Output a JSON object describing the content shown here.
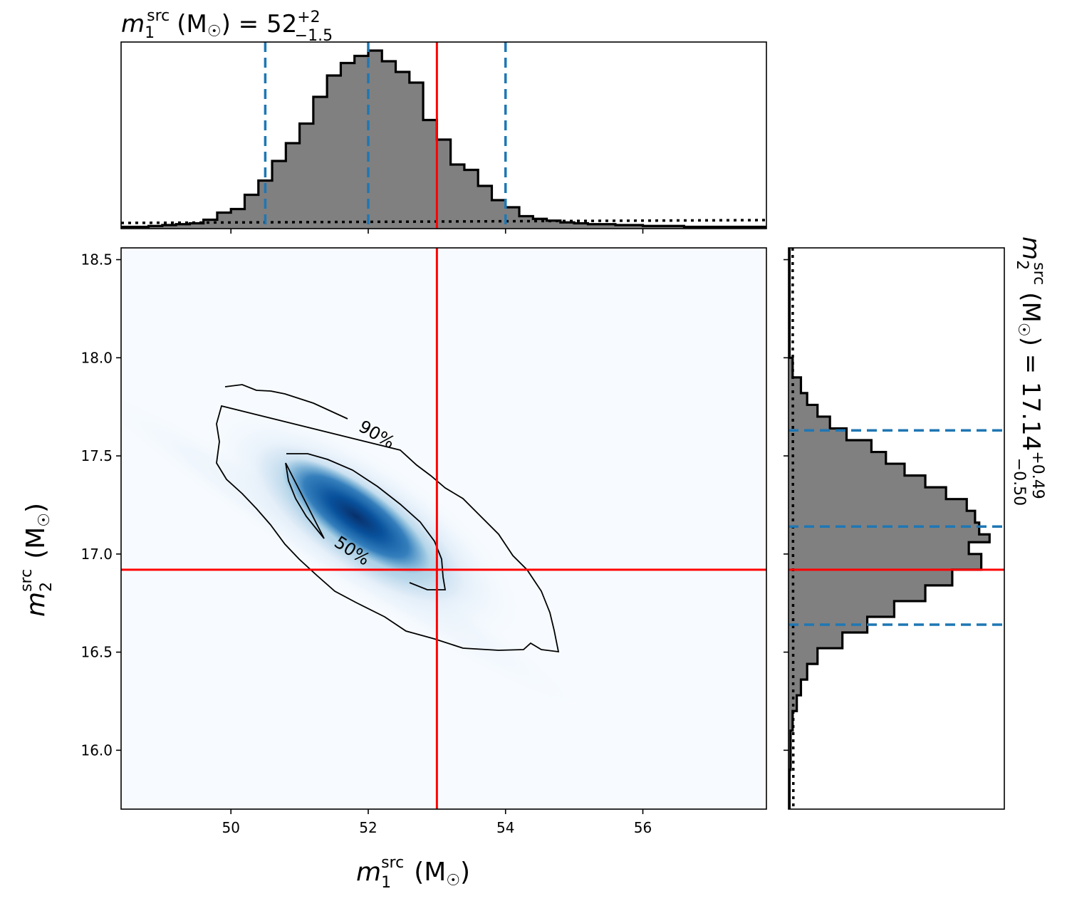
{
  "chart_data": {
    "type": "corner",
    "truth": {
      "m1": 53.0,
      "m2": 16.92
    },
    "m1_quantiles": [
      50.5,
      52.0,
      54.0
    ],
    "m2_quantiles": [
      16.64,
      17.14,
      17.63
    ],
    "top_title": {
      "base": "(M",
      "sun": "☉",
      "tail": ") = 52",
      "sup": "+2",
      "sub": "−1.5",
      "sym": "m",
      "sym_sub": "1",
      "sym_sup": "src"
    },
    "right_title": {
      "base": "(M",
      "sun": "☉",
      "tail": ") = 17.14",
      "sup": "+0.49",
      "sub": "−0.50",
      "sym": "m",
      "sym_sub": "2",
      "sym_sup": "src"
    },
    "xlabel": {
      "sym": "m",
      "sym_sub": "1",
      "sym_sup": "src",
      "unit_open": "(M",
      "sun": "☉",
      "unit_close": ")"
    },
    "ylabel": {
      "sym": "m",
      "sym_sub": "2",
      "sym_sup": "src",
      "unit_open": "(M",
      "sun": "☉",
      "unit_close": ")"
    },
    "xlim": [
      48.4,
      57.8
    ],
    "ylim": [
      15.7,
      18.56
    ],
    "xticks": [
      "50",
      "52",
      "54",
      "56"
    ],
    "xtick_values": [
      50,
      52,
      54,
      56
    ],
    "yticks": [
      "16.0",
      "16.5",
      "17.0",
      "17.5",
      "18.0",
      "18.5"
    ],
    "ytick_values": [
      16.0,
      16.5,
      17.0,
      17.5,
      18.0,
      18.5
    ],
    "contour_labels": [
      "90%",
      "50%"
    ],
    "m1_hist": {
      "bin_edges": [
        48.4,
        48.6,
        48.8,
        49.0,
        49.2,
        49.4,
        49.6,
        49.8,
        50.0,
        50.2,
        50.4,
        50.6,
        50.8,
        51.0,
        51.2,
        51.4,
        51.6,
        51.8,
        52.0,
        52.2,
        52.4,
        52.6,
        52.8,
        53.0,
        53.2,
        53.4,
        53.6,
        53.8,
        54.0,
        54.2,
        54.4,
        54.6,
        54.8,
        55.0,
        55.2,
        55.4,
        55.6,
        55.8,
        56.0,
        56.2,
        56.6,
        57.0,
        57.4,
        57.8
      ],
      "density": [
        0.01,
        0.01,
        0.015,
        0.02,
        0.025,
        0.03,
        0.05,
        0.09,
        0.11,
        0.19,
        0.27,
        0.38,
        0.48,
        0.59,
        0.74,
        0.86,
        0.93,
        0.97,
        1.0,
        0.94,
        0.88,
        0.82,
        0.61,
        0.5,
        0.36,
        0.33,
        0.24,
        0.16,
        0.12,
        0.07,
        0.055,
        0.045,
        0.035,
        0.03,
        0.025,
        0.025,
        0.02,
        0.02,
        0.015,
        0.015,
        0.01,
        0.01,
        0.01
      ]
    },
    "m2_hist": {
      "bin_edges": [
        15.7,
        15.9,
        16.1,
        16.2,
        16.28,
        16.36,
        16.44,
        16.52,
        16.6,
        16.68,
        16.76,
        16.84,
        16.92,
        17.0,
        17.06,
        17.1,
        17.16,
        17.22,
        17.28,
        17.34,
        17.4,
        17.46,
        17.52,
        17.58,
        17.64,
        17.7,
        17.76,
        17.82,
        17.9,
        18.0,
        18.56
      ],
      "density": [
        0.005,
        0.01,
        0.02,
        0.04,
        0.06,
        0.09,
        0.14,
        0.26,
        0.38,
        0.51,
        0.66,
        0.79,
        0.93,
        0.87,
        0.97,
        0.92,
        0.9,
        0.86,
        0.76,
        0.66,
        0.56,
        0.47,
        0.4,
        0.28,
        0.2,
        0.14,
        0.09,
        0.06,
        0.02,
        0.005
      ]
    },
    "prior_level": {
      "m1": 0.04,
      "m2": 0.02
    }
  }
}
